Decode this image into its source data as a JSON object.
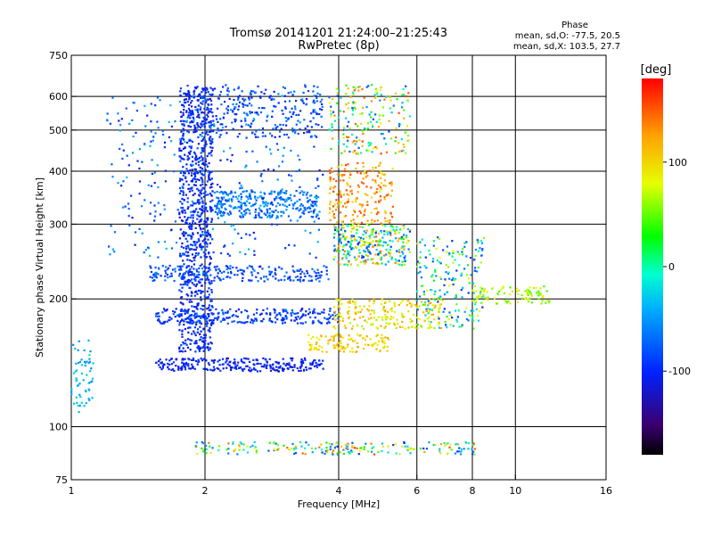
{
  "chart_data": {
    "type": "scatter",
    "title": "Tromsø 20141201 21:24:00–21:25:43",
    "subtitle": "RwPretec (8p)",
    "xlabel": "Frequency [MHz]",
    "ylabel": "Stationary phase Virtual Height [km]",
    "x_scale": "log",
    "y_scale": "log",
    "xlim": [
      1,
      16
    ],
    "ylim": [
      75,
      750
    ],
    "x_ticks": [
      1,
      2,
      4,
      6,
      8,
      10,
      16
    ],
    "y_ticks": [
      75,
      100,
      200,
      300,
      400,
      500,
      600,
      750
    ],
    "x_gridlines": [
      2,
      4,
      6,
      8,
      10
    ],
    "y_gridlines": [
      100,
      200,
      300,
      400,
      500,
      600
    ],
    "phase_stats": {
      "heading": "Phase",
      "line_o": "mean, sd,O: -77.5, 20.5",
      "line_x": "mean, sd,X: 103.5, 27.7"
    },
    "colorbar": {
      "unit": "[deg]",
      "range": [
        -180,
        180
      ],
      "ticks": [
        100,
        0,
        -100
      ],
      "colors": [
        "#000000",
        "#3a0070",
        "#0022ff",
        "#00a8ff",
        "#00ffd0",
        "#00ff00",
        "#e6ff00",
        "#ffa000",
        "#ff0000"
      ]
    },
    "clusters": [
      {
        "name": "low-freq trace",
        "x": [
          1.0,
          1.12
        ],
        "y": [
          108,
          160
        ],
        "phase": [
          -60,
          -20
        ],
        "n": 60
      },
      {
        "name": "O main column",
        "x": [
          1.75,
          2.08
        ],
        "y": [
          150,
          640
        ],
        "phase": [
          -120,
          -80
        ],
        "n": 900
      },
      {
        "name": "O trace lower",
        "x": [
          1.55,
          3.7
        ],
        "y": [
          135,
          145
        ],
        "phase": [
          -120,
          -90
        ],
        "n": 260
      },
      {
        "name": "O band 180",
        "x": [
          1.55,
          4.0
        ],
        "y": [
          175,
          190
        ],
        "phase": [
          -110,
          -70
        ],
        "n": 260
      },
      {
        "name": "O band 230",
        "x": [
          1.5,
          3.8
        ],
        "y": [
          220,
          240
        ],
        "phase": [
          -110,
          -60
        ],
        "n": 220
      },
      {
        "name": "O curve 330",
        "x": [
          2.1,
          3.6
        ],
        "y": [
          310,
          360
        ],
        "phase": [
          -90,
          -40
        ],
        "n": 300
      },
      {
        "name": "O upper band",
        "x": [
          2.05,
          3.7
        ],
        "y": [
          480,
          640
        ],
        "phase": [
          -110,
          -60
        ],
        "n": 220
      },
      {
        "name": "O scatter upper",
        "x": [
          1.2,
          3.7
        ],
        "y": [
          250,
          620
        ],
        "phase": [
          -120,
          -30
        ],
        "n": 350
      },
      {
        "name": "X trace 180",
        "x": [
          3.9,
          6.8
        ],
        "y": [
          170,
          200
        ],
        "phase": [
          60,
          130
        ],
        "n": 200
      },
      {
        "name": "X trace 160",
        "x": [
          3.4,
          5.2
        ],
        "y": [
          150,
          165
        ],
        "phase": [
          80,
          130
        ],
        "n": 120
      },
      {
        "name": "X band 350",
        "x": [
          3.8,
          5.3
        ],
        "y": [
          300,
          420
        ],
        "phase": [
          90,
          160
        ],
        "n": 200
      },
      {
        "name": "X band 270",
        "x": [
          3.9,
          5.8
        ],
        "y": [
          240,
          300
        ],
        "phase": [
          -110,
          150
        ],
        "n": 300
      },
      {
        "name": "X upper",
        "x": [
          3.8,
          5.8
        ],
        "y": [
          440,
          640
        ],
        "phase": [
          -90,
          160
        ],
        "n": 200
      },
      {
        "name": "F2 region 6-8",
        "x": [
          6.0,
          8.5
        ],
        "y": [
          170,
          280
        ],
        "phase": [
          -100,
          90
        ],
        "n": 200
      },
      {
        "name": "F2 region 8-12",
        "x": [
          8.0,
          12.0
        ],
        "y": [
          195,
          215
        ],
        "phase": [
          40,
          100
        ],
        "n": 90
      },
      {
        "name": "E region 90",
        "x": [
          1.9,
          8.2
        ],
        "y": [
          86,
          92
        ],
        "phase": [
          -100,
          160
        ],
        "n": 200
      }
    ]
  }
}
